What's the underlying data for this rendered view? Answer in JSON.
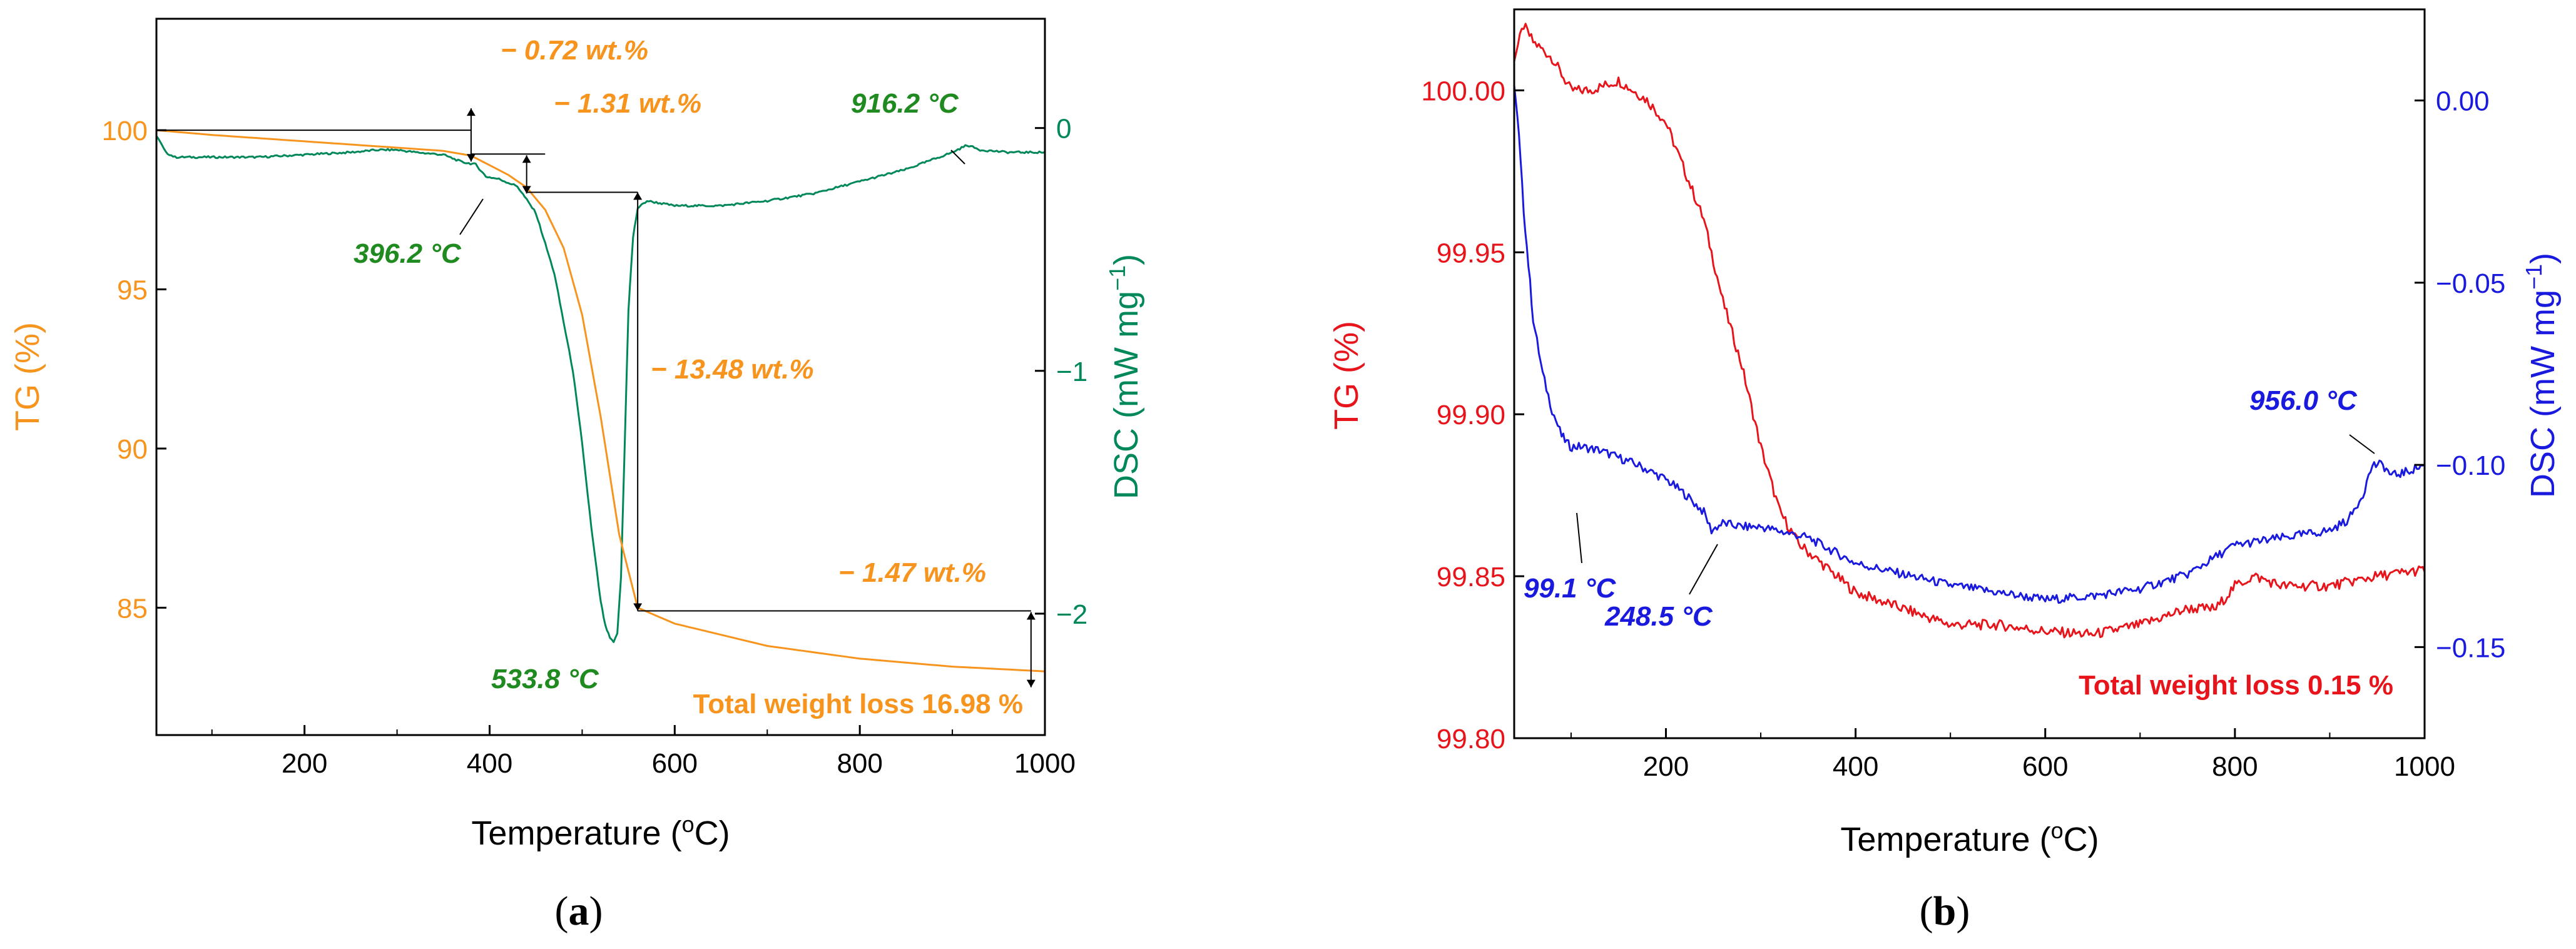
{
  "colors": {
    "tg_a": "#f7941d",
    "dsc_a": "#00875a",
    "tg_b": "#e8141b",
    "dsc_b": "#1a1adf",
    "axis": "#000000"
  },
  "chart_data": [
    {
      "type": "line",
      "panel_label": "a",
      "xlabel": "Temperature",
      "xlabel_unit": "C",
      "xlabel_unit_sup": "o",
      "xlim": [
        40,
        1000
      ],
      "xticks": [
        200,
        400,
        600,
        800,
        1000
      ],
      "y_left": {
        "label": "TG",
        "unit": "(%)",
        "lim": [
          81,
          103.5
        ],
        "ticks": [
          85,
          90,
          95,
          100
        ]
      },
      "y_right": {
        "label": "DSC",
        "unit_open": "(mW mg",
        "unit_sup": "−1",
        "unit_close": ")",
        "lim": [
          -2.5,
          0.45
        ],
        "ticks": [
          0,
          -1,
          -2
        ],
        "tick_labels": [
          "0",
          "−1",
          "−2"
        ]
      },
      "series": [
        {
          "name": "TG",
          "axis": "left",
          "x": [
            40,
            100,
            200,
            300,
            350,
            380,
            400,
            420,
            440,
            460,
            480,
            500,
            520,
            540,
            560,
            600,
            700,
            800,
            900,
            1000
          ],
          "y": [
            100.0,
            99.85,
            99.65,
            99.45,
            99.35,
            99.2,
            98.9,
            98.6,
            98.2,
            97.5,
            96.3,
            94.2,
            91.0,
            87.3,
            85.0,
            84.5,
            83.8,
            83.4,
            83.15,
            83.0
          ]
        },
        {
          "name": "DSC",
          "axis": "right",
          "x": [
            40,
            50,
            60,
            80,
            100,
            150,
            200,
            250,
            280,
            300,
            320,
            350,
            370,
            385,
            396,
            410,
            430,
            450,
            470,
            490,
            500,
            510,
            520,
            525,
            530,
            534,
            538,
            542,
            546,
            550,
            555,
            560,
            570,
            600,
            650,
            700,
            750,
            800,
            850,
            900,
            916,
            930,
            960,
            980,
            1000
          ],
          "y": [
            -0.03,
            -0.1,
            -0.12,
            -0.12,
            -0.12,
            -0.12,
            -0.11,
            -0.1,
            -0.09,
            -0.09,
            -0.1,
            -0.11,
            -0.14,
            -0.15,
            -0.2,
            -0.21,
            -0.24,
            -0.35,
            -0.6,
            -1.0,
            -1.3,
            -1.65,
            -1.95,
            -2.05,
            -2.1,
            -2.12,
            -2.08,
            -1.85,
            -1.3,
            -0.75,
            -0.45,
            -0.33,
            -0.3,
            -0.32,
            -0.32,
            -0.3,
            -0.27,
            -0.22,
            -0.17,
            -0.1,
            -0.07,
            -0.09,
            -0.1,
            -0.1,
            -0.1
          ]
        }
      ],
      "annotations": {
        "wt1": "− 0.72 wt.%",
        "wt2": "− 1.31 wt.%",
        "wt3": "− 13.48 wt.%",
        "wt4": "− 1.47 wt.%",
        "total": "Total weight loss 16.98 %",
        "peak1_value": "396.2",
        "peak2_value": "533.8",
        "peak3_value": "916.2",
        "deg": "°C"
      }
    },
    {
      "type": "line",
      "panel_label": "b",
      "xlabel": "Temperature",
      "xlabel_unit": "C",
      "xlabel_unit_sup": "o",
      "xlim": [
        40,
        1000
      ],
      "xticks": [
        200,
        400,
        600,
        800,
        1000
      ],
      "y_left": {
        "label": "TG",
        "unit": "(%)",
        "lim": [
          99.8,
          100.025
        ],
        "ticks": [
          99.8,
          99.85,
          99.9,
          99.95,
          100.0
        ],
        "tick_labels": [
          "99.80",
          "99.85",
          "99.90",
          "99.95",
          "100.00"
        ]
      },
      "y_right": {
        "label": "DSC",
        "unit_open": "(mW mg",
        "unit_sup": "−1",
        "unit_close": ")",
        "lim": [
          -0.175,
          0.025
        ],
        "ticks": [
          0,
          -0.05,
          -0.1,
          -0.15
        ],
        "tick_labels": [
          "0.00",
          "−0.05",
          "−0.10",
          "−0.15"
        ]
      },
      "series": [
        {
          "name": "TG",
          "axis": "left",
          "x": [
            40,
            50,
            60,
            80,
            100,
            120,
            150,
            180,
            200,
            220,
            240,
            260,
            280,
            300,
            320,
            340,
            360,
            380,
            400,
            450,
            500,
            550,
            600,
            650,
            700,
            750,
            780,
            800,
            820,
            850,
            900,
            950,
            1000
          ],
          "y": [
            100.01,
            100.02,
            100.015,
            100.01,
            100.0,
            100.0,
            100.003,
            99.997,
            99.99,
            99.975,
            99.96,
            99.935,
            99.915,
            99.89,
            99.87,
            99.86,
            99.855,
            99.85,
            99.845,
            99.84,
            99.835,
            99.835,
            99.833,
            99.832,
            99.835,
            99.84,
            99.84,
            99.847,
            99.85,
            99.847,
            99.847,
            99.85,
            99.852
          ]
        },
        {
          "name": "DSC",
          "axis": "right",
          "x": [
            40,
            45,
            50,
            55,
            60,
            70,
            80,
            90,
            99,
            110,
            130,
            150,
            170,
            200,
            220,
            240,
            248,
            260,
            280,
            300,
            350,
            400,
            450,
            500,
            550,
            600,
            650,
            700,
            750,
            800,
            850,
            900,
            920,
            935,
            945,
            956,
            965,
            980,
            1000
          ],
          "y": [
            0.005,
            -0.01,
            -0.03,
            -0.045,
            -0.06,
            -0.075,
            -0.085,
            -0.092,
            -0.095,
            -0.095,
            -0.096,
            -0.098,
            -0.1,
            -0.104,
            -0.108,
            -0.113,
            -0.118,
            -0.116,
            -0.117,
            -0.117,
            -0.12,
            -0.127,
            -0.13,
            -0.133,
            -0.135,
            -0.137,
            -0.136,
            -0.134,
            -0.13,
            -0.122,
            -0.12,
            -0.118,
            -0.115,
            -0.108,
            -0.1,
            -0.1,
            -0.103,
            -0.102,
            -0.1
          ]
        }
      ],
      "annotations": {
        "total": "Total weight loss 0.15 %",
        "peak1_value": "99.1",
        "peak2_value": "248.5",
        "peak3_value": "956.0",
        "deg": "°C"
      }
    }
  ]
}
